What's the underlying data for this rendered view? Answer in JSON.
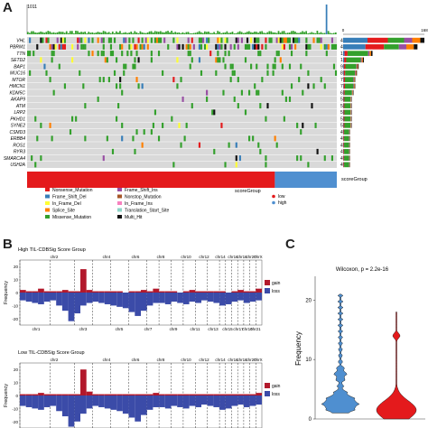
{
  "panels": {
    "a": "A",
    "b": "B",
    "c": "C"
  },
  "colors": {
    "background_cell": "#d9d9d9",
    "Nonsense_Mutation": "#e41a1c",
    "Frame_Shift_Del": "#377eb8",
    "In_Frame_Del": "#ffff33",
    "Splice_Site": "#ff7f00",
    "Missense_Mutation": "#33a02c",
    "Frame_Shift_Ins": "#984ea3",
    "Nonstop_Mutation": "#a65628",
    "In_Frame_Ins": "#f781bf",
    "Translation_Start_Site": "#8dd3c7",
    "Multi_Hit": "#111111",
    "low": "#e41a1c",
    "high": "#4f8fd0",
    "gain": "#b2182b",
    "loss": "#3b4ba8"
  },
  "chart_data": [
    {
      "type": "heatmap",
      "panel": "A",
      "top_axis_tick": "1011",
      "genes": [
        "VHL",
        "PBRM1",
        "TTN",
        "SETD2",
        "BAP1",
        "MUC16",
        "MTOR",
        "HMCN1",
        "KDM5C",
        "AKAP9",
        "ATM",
        "LRP2",
        "PKHD1",
        "SYNE2",
        "CSMD3",
        "ERBB4",
        "ROS1",
        "RYR3",
        "SMARCA4",
        "USH2A"
      ],
      "percentages": [
        "47%",
        "43%",
        "17%",
        "12%",
        "9%",
        "8%",
        "7%",
        "7%",
        "6%",
        "5%",
        "5%",
        "5%",
        "5%",
        "5%",
        "4%",
        "4%",
        "4%",
        "4%",
        "4%",
        "4%"
      ],
      "gene_mutated_fraction": [
        0.47,
        0.43,
        0.17,
        0.12,
        0.09,
        0.08,
        0.07,
        0.07,
        0.06,
        0.05,
        0.05,
        0.05,
        0.05,
        0.05,
        0.04,
        0.04,
        0.04,
        0.04,
        0.04,
        0.04
      ],
      "low_fraction": 0.8,
      "right_axis_ticks": [
        "0",
        "168"
      ],
      "legend": {
        "items": [
          "Nonsense_Mutation",
          "Frame_Shift_Ins",
          "Frame_Shift_Del",
          "Nonstop_Mutation",
          "In_Frame_Del",
          "In_Frame_Ins",
          "Splice_Site",
          "Translation_Start_Site",
          "Missense_Mutation",
          "Multi_Hit"
        ],
        "group_title": "scoreGroup",
        "group_items": [
          "low",
          "high"
        ],
        "group_side_label": "scoreGroup"
      }
    },
    {
      "type": "area",
      "panel": "B1",
      "title": "High TIL-CDBSig Score Group",
      "ylabel": "Frequency",
      "yticks": [
        "20",
        "10",
        "0",
        "-10",
        "-20"
      ],
      "ylim": [
        -25,
        25
      ],
      "chromosomes_top": [
        "chr2",
        "chr4",
        "chr6",
        "chr8",
        "chr10",
        "chr12",
        "chr14",
        "chr16",
        "chr18",
        "chr20",
        "chrX"
      ],
      "chromosomes_bottom": [
        "chr1",
        "chr3",
        "chr5",
        "chr7",
        "chr9",
        "chr11",
        "chr13",
        "chr15",
        "chr17",
        "chr19",
        "chr21"
      ],
      "legend": [
        "gain",
        "loss"
      ],
      "gain": [
        2,
        1,
        1,
        3,
        1,
        1,
        1,
        2,
        1,
        1,
        18,
        2,
        1,
        1,
        1,
        1,
        1,
        0,
        1,
        1,
        2,
        1,
        3,
        1,
        1,
        1,
        0,
        1,
        2,
        1,
        1,
        1,
        1,
        1,
        0,
        1,
        2,
        1,
        1,
        3
      ],
      "loss": [
        -6,
        -7,
        -8,
        -9,
        -7,
        -6,
        -10,
        -14,
        -22,
        -16,
        -10,
        -8,
        -7,
        -8,
        -9,
        -10,
        -11,
        -12,
        -15,
        -18,
        -14,
        -10,
        -8,
        -8,
        -9,
        -7,
        -8,
        -9,
        -7,
        -8,
        -6,
        -7,
        -8,
        -10,
        -9,
        -7,
        -6,
        -8,
        -7,
        -6
      ]
    },
    {
      "type": "area",
      "panel": "B2",
      "title": "Low TIL-CDBSig Score Group",
      "ylabel": "Frequency",
      "yticks": [
        "20",
        "10",
        "0",
        "-10",
        "-20"
      ],
      "ylim": [
        -25,
        25
      ],
      "chromosomes_top": [
        "chr2",
        "chr4",
        "chr6",
        "chr8",
        "chr10",
        "chr12",
        "chr14",
        "chr16",
        "chr18",
        "chr20",
        "chrX"
      ],
      "chromosomes_bottom": [
        "chr1",
        "chr3",
        "chr5",
        "chr7",
        "chr9",
        "chr11",
        "chr13",
        "chr15",
        "chr17",
        "chr19",
        "chr21"
      ],
      "legend": [
        "gain",
        "loss"
      ],
      "gain": [
        1,
        1,
        1,
        2,
        1,
        1,
        1,
        1,
        1,
        1,
        20,
        3,
        1,
        1,
        1,
        1,
        1,
        1,
        1,
        1,
        1,
        1,
        2,
        1,
        1,
        1,
        1,
        1,
        1,
        1,
        1,
        1,
        1,
        1,
        1,
        1,
        1,
        1,
        1,
        2
      ],
      "loss": [
        -8,
        -9,
        -10,
        -11,
        -9,
        -8,
        -12,
        -16,
        -24,
        -20,
        -14,
        -10,
        -8,
        -9,
        -10,
        -11,
        -12,
        -14,
        -17,
        -20,
        -15,
        -11,
        -9,
        -9,
        -10,
        -8,
        -9,
        -10,
        -8,
        -9,
        -7,
        -8,
        -9,
        -11,
        -10,
        -8,
        -7,
        -9,
        -8,
        -7
      ]
    },
    {
      "type": "violin",
      "panel": "C",
      "annotation": "Wilcoxon, p = 2.2e-16",
      "ylabel": "Frequency",
      "yticks": [
        "0",
        "10",
        "20"
      ],
      "ylim": [
        0,
        24
      ],
      "series": [
        {
          "group": "high",
          "color": "#4f8fd0",
          "min": 1,
          "max": 21
        },
        {
          "group": "low",
          "color": "#e41a1c",
          "min": 0,
          "max": 18
        }
      ]
    }
  ]
}
